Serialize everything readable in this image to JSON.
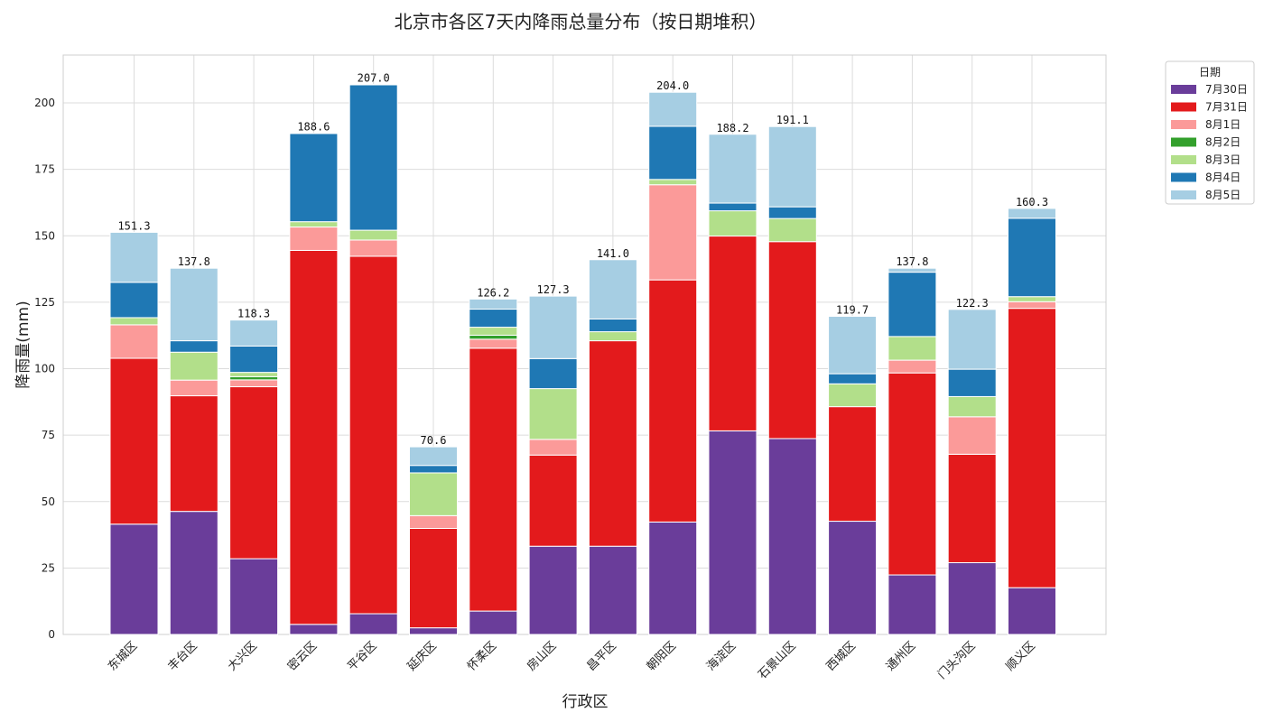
{
  "chart_data": {
    "type": "bar",
    "stacked": true,
    "title": "北京市各区7天内降雨总量分布（按日期堆积）",
    "xlabel": "行政区",
    "ylabel": "降雨量(mm)",
    "ylim": [
      0,
      218
    ],
    "yticks": [
      0,
      25,
      50,
      75,
      100,
      125,
      150,
      175,
      200
    ],
    "grid": true,
    "legend_title": "日期",
    "legend_position": "outside-top-right",
    "categories": [
      "东城区",
      "丰台区",
      "大兴区",
      "密云区",
      "平谷区",
      "延庆区",
      "怀柔区",
      "房山区",
      "昌平区",
      "朝阳区",
      "海淀区",
      "石景山区",
      "西城区",
      "通州区",
      "门头沟区",
      "顺义区"
    ],
    "totals": [
      "151.3",
      "137.8",
      "118.3",
      "188.6",
      "207.0",
      "70.6",
      "126.2",
      "127.3",
      "141.0",
      "204.0",
      "188.2",
      "191.1",
      "119.7",
      "137.8",
      "122.3",
      "160.3"
    ],
    "series": [
      {
        "name": "7月30日",
        "color": "#6a3d9a",
        "values": [
          41.5,
          46.3,
          28.5,
          3.8,
          7.8,
          2.5,
          8.8,
          33.2,
          33.2,
          42.3,
          76.6,
          73.7,
          42.6,
          22.4,
          27.0,
          17.6
        ]
      },
      {
        "name": "7月31日",
        "color": "#e31a1c",
        "values": [
          62.4,
          43.5,
          64.7,
          140.7,
          134.5,
          37.4,
          98.9,
          34.3,
          77.3,
          91.1,
          73.3,
          74.1,
          43.1,
          76.0,
          40.8,
          105.1
        ]
      },
      {
        "name": "8月1日",
        "color": "#fb9a99",
        "values": [
          12.6,
          5.9,
          2.6,
          8.8,
          6.1,
          4.8,
          3.4,
          5.9,
          0.0,
          35.8,
          0.0,
          0.0,
          0.0,
          4.8,
          14.1,
          2.5
        ]
      },
      {
        "name": "8月2日",
        "color": "#33a02c",
        "values": [
          0.0,
          0.0,
          1.2,
          0.0,
          0.0,
          0.0,
          1.5,
          0.0,
          0.0,
          0.0,
          0.0,
          0.0,
          0.0,
          0.0,
          0.0,
          0.0
        ]
      },
      {
        "name": "8月3日",
        "color": "#b2df8a",
        "values": [
          2.7,
          10.5,
          1.6,
          2.0,
          3.7,
          16.1,
          3.0,
          19.1,
          3.4,
          2.0,
          9.5,
          8.7,
          8.6,
          8.9,
          7.6,
          1.9
        ]
      },
      {
        "name": "8月4日",
        "color": "#1f78b4",
        "values": [
          13.3,
          4.3,
          9.9,
          33.2,
          54.7,
          2.8,
          6.8,
          11.3,
          4.8,
          20.0,
          2.9,
          4.4,
          3.8,
          24.2,
          10.3,
          29.5
        ]
      },
      {
        "name": "8月5日",
        "color": "#a6cee3",
        "values": [
          18.8,
          27.3,
          9.8,
          0.1,
          0.2,
          7.0,
          3.8,
          23.5,
          22.3,
          12.8,
          25.9,
          30.2,
          21.6,
          1.5,
          22.5,
          3.7
        ]
      }
    ]
  }
}
